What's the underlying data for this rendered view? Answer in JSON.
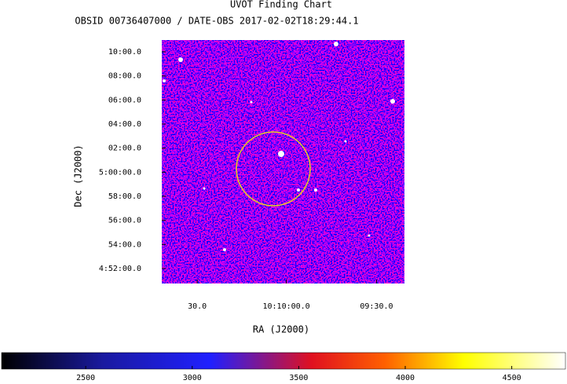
{
  "chart_data": {
    "type": "image",
    "title": "UVOT Finding Chart",
    "subtitle": "OBSID 00736407000 / DATE-OBS 2017-02-02T18:29:44.1",
    "x_label": "RA (J2000)",
    "y_label": "Dec (J2000)",
    "xlim": [
      10.1783,
      10.1557
    ],
    "xticks": [
      {
        "value": 10.175,
        "label": "30.0"
      },
      {
        "value": 10.1667,
        "label": "10:10:00.0"
      },
      {
        "value": 10.1583,
        "label": "09:30.0"
      }
    ],
    "ylim": [
      4.846,
      5.183
    ],
    "yticks": [
      {
        "value": 5.1667,
        "label": "10:00.0"
      },
      {
        "value": 5.1333,
        "label": "08:00.0"
      },
      {
        "value": 5.1,
        "label": "06:00.0"
      },
      {
        "value": 5.0667,
        "label": "04:00.0"
      },
      {
        "value": 5.0333,
        "label": "02:00.0"
      },
      {
        "value": 5.0,
        "label": "5:00:00.0"
      },
      {
        "value": 4.9667,
        "label": "58:00.0"
      },
      {
        "value": 4.9333,
        "label": "56:00.0"
      },
      {
        "value": 4.9,
        "label": "54:00.0"
      },
      {
        "value": 4.8667,
        "label": "4:52:00.0"
      }
    ],
    "colorbar": {
      "clim": [
        2105,
        4752
      ],
      "ticks": [
        2500,
        3000,
        3500,
        4000,
        4500
      ]
    }
  }
}
